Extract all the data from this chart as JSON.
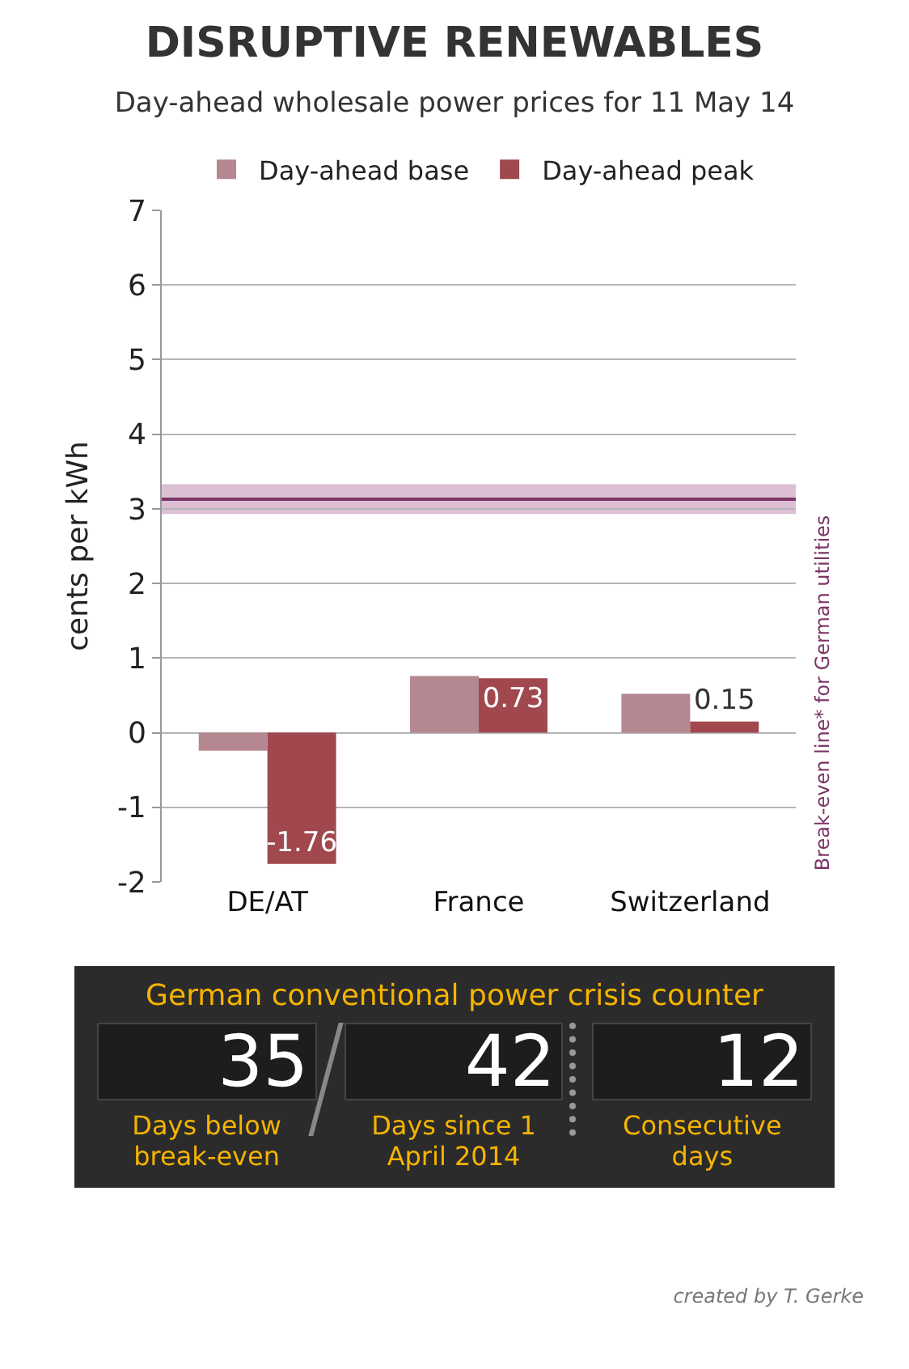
{
  "chart_data": [
    {
      "type": "bar",
      "title": "DISRUPTIVE RENEWABLES",
      "subtitle": "Day-ahead wholesale power prices for 11 May 14",
      "ylabel": "cents per kWh",
      "categories": [
        "DE/AT",
        "France",
        "Switzerland"
      ],
      "series": [
        {
          "name": "Day-ahead base",
          "color": "#b48791",
          "values": [
            -0.24,
            0.76,
            0.52
          ]
        },
        {
          "name": "Day-ahead peak",
          "color": "#a0484e",
          "values": [
            -1.76,
            0.73,
            0.15
          ],
          "value_labels": [
            "-1.76",
            "0.73",
            "0.15"
          ]
        }
      ],
      "ylim": [
        -2,
        7
      ],
      "yticks": [
        -2,
        -1,
        0,
        1,
        2,
        3,
        4,
        5,
        6,
        7
      ],
      "grid": "y",
      "legend": "top",
      "ref_lines": [
        {
          "axis": "y",
          "value": 3.13,
          "label": "Break-even line* for German utilities",
          "color": "#7b3566"
        }
      ],
      "bands": [
        {
          "axis": "y",
          "from": 2.93,
          "to": 3.33,
          "color": "#dcbfd4"
        }
      ]
    },
    {
      "type": "other",
      "title": "German conventional power crisis counter",
      "categories": [
        "Days below break-even",
        "Days since 1 April 2014",
        "Consecutive days"
      ],
      "values": [
        35,
        42,
        12
      ],
      "data_labels": true,
      "annotations": [
        "created by T. Gerke"
      ]
    }
  ]
}
